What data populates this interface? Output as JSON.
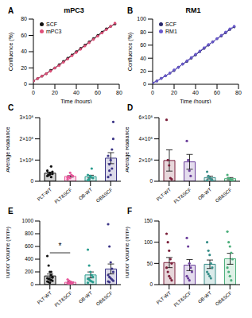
{
  "chart_data": [
    {
      "panel": "A",
      "title": "mPC3",
      "type": "line",
      "x_label": "Time (hours)",
      "y_label": "Confluence (%)",
      "x": [
        0,
        4,
        8,
        12,
        16,
        20,
        24,
        28,
        32,
        36,
        40,
        44,
        48,
        52,
        56,
        60,
        64,
        68,
        72,
        76
      ],
      "xlim": [
        0,
        80
      ],
      "xticks": [
        0,
        20,
        40,
        60,
        80
      ],
      "ylim": [
        0,
        80
      ],
      "yticks": [
        0,
        20,
        40,
        60,
        80
      ],
      "legend": "upper left",
      "series": [
        {
          "name": "SCF",
          "color": "#111111",
          "marker": "circle",
          "values": [
            4,
            7,
            10,
            13,
            17,
            20,
            24,
            28,
            32,
            36,
            40,
            44,
            48,
            52,
            56,
            60,
            64,
            68,
            71,
            74
          ]
        },
        {
          "name": "mPC3",
          "color": "#e0507a",
          "marker": "circle",
          "values": [
            4,
            7,
            10,
            13,
            16,
            20,
            23,
            27,
            31,
            35,
            39,
            43,
            47,
            51,
            55,
            59,
            63,
            67,
            71,
            75
          ]
        }
      ]
    },
    {
      "panel": "B",
      "title": "RM1",
      "type": "line",
      "x_label": "Time (hours)",
      "y_label": "Confluence (%)",
      "x": [
        0,
        4,
        8,
        12,
        16,
        20,
        24,
        28,
        32,
        36,
        40,
        44,
        48,
        52,
        56,
        60,
        64,
        68,
        72,
        76
      ],
      "xlim": [
        0,
        80
      ],
      "xticks": [
        0,
        20,
        40,
        60,
        80
      ],
      "ylim": [
        0,
        100
      ],
      "yticks": [
        0,
        20,
        40,
        60,
        80,
        100
      ],
      "legend": "upper left",
      "series": [
        {
          "name": "SCF",
          "color": "#2b2a6b",
          "marker": "circle",
          "values": [
            2,
            5,
            9,
            13,
            17,
            21,
            26,
            31,
            35,
            40,
            45,
            50,
            55,
            60,
            65,
            70,
            74,
            79,
            84,
            88
          ]
        },
        {
          "name": "RM1",
          "color": "#6a5acd",
          "marker": "circle",
          "values": [
            2,
            5,
            9,
            13,
            17,
            22,
            26,
            31,
            36,
            41,
            46,
            51,
            56,
            61,
            65,
            70,
            75,
            80,
            85,
            89
          ]
        }
      ]
    },
    {
      "panel": "C",
      "type": "bar",
      "y_label": "Average Radiance",
      "categories": [
        "PLT-WT",
        "PLT&SCF",
        "OB-WT",
        "OB&SCF"
      ],
      "colors": [
        "#111111",
        "#e8559a",
        "#2a9d8f",
        "#3b3486"
      ],
      "values": [
        38000000,
        23000000,
        22000000,
        109000000
      ],
      "errors": [
        5000000,
        3500000,
        6500000,
        26000000
      ],
      "points": [
        [
          25000000,
          30000000,
          40000000,
          20000000,
          35000000,
          50000000,
          28000000,
          32000000,
          70000000,
          45000000
        ],
        [
          10000000,
          20000000,
          15000000,
          30000000,
          25000000,
          18000000,
          22000000,
          40000000
        ],
        [
          5000000,
          10000000,
          20000000,
          60000000,
          15000000,
          30000000,
          8000000,
          25000000
        ],
        [
          20000000,
          50000000,
          100000000,
          150000000,
          280000000,
          120000000,
          80000000,
          30000000,
          60000000,
          200000000
        ]
      ],
      "ylim": [
        0,
        300000000
      ],
      "yticks": [
        0,
        {
          "value": 100000000,
          "label": "1×10⁸"
        },
        {
          "value": 200000000,
          "label": "2×10⁸"
        },
        {
          "value": 300000000,
          "label": "3×10⁸"
        }
      ]
    },
    {
      "panel": "D",
      "type": "bar",
      "y_label": "Average Radiance",
      "categories": [
        "PLT-WT",
        "PLT&SCF",
        "OB-WT",
        "OB&SCF"
      ],
      "colors": [
        "#7b1f3a",
        "#6a3d9a",
        "#3a8f8a",
        "#4daf7c"
      ],
      "values": [
        196000000,
        183000000,
        35000000,
        25000000
      ],
      "errors": [
        100000000,
        70000000,
        13000000,
        10000000
      ],
      "points": [
        [
          580000000,
          200000000,
          150000000,
          30000000,
          20000000
        ],
        [
          380000000,
          200000000,
          100000000,
          50000000
        ],
        [
          90000000,
          50000000,
          30000000,
          20000000,
          10000000,
          8000000
        ],
        [
          60000000,
          30000000,
          20000000,
          10000000,
          5000000
        ]
      ],
      "ylim": [
        0,
        600000000
      ],
      "yticks": [
        0,
        {
          "value": 200000000,
          "label": "2×10⁸"
        },
        {
          "value": 400000000,
          "label": "4×10⁸"
        },
        {
          "value": 600000000,
          "label": "6×10⁸"
        }
      ]
    },
    {
      "panel": "E",
      "type": "bar",
      "y_label": "Tumor Volume (mm³)",
      "categories": [
        "PLT-WT",
        "PLT&SCF",
        "OB-WT",
        "OB&SCF"
      ],
      "colors": [
        "#111111",
        "#e8559a",
        "#2a9d8f",
        "#3b3486"
      ],
      "values": [
        136,
        37,
        152,
        246
      ],
      "errors": [
        30,
        7,
        47,
        78
      ],
      "points": [
        [
          450,
          300,
          200,
          150,
          120,
          100,
          90,
          80,
          70,
          60,
          50,
          40,
          30,
          200,
          110
        ],
        [
          80,
          60,
          50,
          40,
          30,
          25,
          20,
          15,
          10
        ],
        [
          550,
          300,
          200,
          150,
          120,
          90,
          80,
          60,
          50,
          40,
          30
        ],
        [
          950,
          600,
          350,
          250,
          200,
          150,
          120,
          100,
          80,
          60,
          50,
          40
        ]
      ],
      "ylim": [
        0,
        1000
      ],
      "yticks": [
        0,
        200,
        400,
        600,
        800,
        1000
      ],
      "annotations": [
        {
          "text": "*",
          "categories": [
            "PLT-WT",
            "PLT&SCF"
          ],
          "y": 500
        }
      ]
    },
    {
      "panel": "F",
      "type": "bar",
      "y_label": "Tumor Volume (mm³)",
      "categories": [
        "PLT-WT",
        "PLT&SCF",
        "OB-WT",
        "OB&SCF"
      ],
      "colors": [
        "#7b1f3a",
        "#6a3d9a",
        "#3a8f8a",
        "#4daf7c"
      ],
      "values": [
        52,
        46,
        48,
        61
      ],
      "errors": [
        12,
        13,
        10,
        13
      ],
      "points": [
        [
          120,
          100,
          80,
          60,
          50,
          40,
          30,
          20,
          15,
          10
        ],
        [
          110,
          90,
          50,
          40,
          30,
          20,
          15,
          10
        ],
        [
          100,
          80,
          70,
          50,
          40,
          30,
          25,
          20,
          15
        ],
        [
          125,
          100,
          90,
          75,
          60,
          40,
          30,
          20,
          10
        ]
      ],
      "ylim": [
        0,
        150
      ],
      "yticks": [
        0,
        50,
        100,
        150
      ]
    }
  ]
}
